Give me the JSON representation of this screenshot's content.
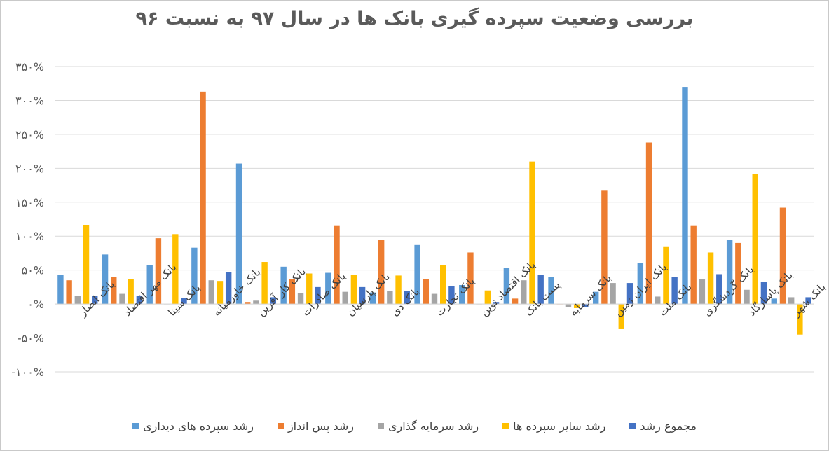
{
  "chart_data": {
    "type": "bar",
    "title": "بررسی وضعیت سپرده گیری بانک ها در سال ۹۷ به نسبت ۹۶",
    "categories": [
      "بانک انصار",
      "بانک مهر اقتصاد",
      "بانک سینا",
      "بانک خاورمیانه",
      "بانک کار آفرین",
      "بانک صادرات",
      "بانک پارسیان",
      "بانک دی",
      "بانک تجارت",
      "بانک اقتصاد نوین",
      "پست بانک",
      "بانک سرمایه",
      "بانک ایران زمین",
      "بانک ملت",
      "بانک گردشگری",
      "بانک پاسارگاد",
      "بانک شهر"
    ],
    "series": [
      {
        "name": "رشد سپرده های دیداری",
        "color": "#5B9BD5",
        "values": [
          43,
          73,
          57,
          83,
          207,
          55,
          46,
          17,
          87,
          28,
          53,
          40,
          18,
          60,
          320,
          95,
          8
        ]
      },
      {
        "name": "رشد پس انداز",
        "color": "#ED7D31",
        "values": [
          35,
          40,
          97,
          313,
          3,
          37,
          115,
          95,
          37,
          76,
          8,
          0,
          167,
          238,
          115,
          90,
          142
        ]
      },
      {
        "name": "رشد سرمایه گذاری",
        "color": "#A5A5A5",
        "values": [
          12,
          15,
          0,
          35,
          5,
          16,
          18,
          19,
          15,
          0,
          35,
          -5,
          31,
          11,
          37,
          21,
          10
        ]
      },
      {
        "name": "رشد سایر سپرده ها",
        "color": "#FFC000",
        "values": [
          116,
          37,
          103,
          34,
          62,
          45,
          43,
          42,
          57,
          20,
          210,
          -6,
          -37,
          85,
          76,
          192,
          -45
        ]
      },
      {
        "name": "مجموع رشد",
        "color": "#4472C4",
        "values": [
          12,
          12,
          9,
          47,
          10,
          25,
          25,
          19,
          26,
          3,
          43,
          -5,
          31,
          40,
          44,
          33,
          10
        ]
      }
    ],
    "yticks": [
      "۳۵۰%",
      "۳۰۰%",
      "۲۵۰%",
      "۲۰۰%",
      "۱۵۰%",
      "۱۰۰%",
      "۵۰%",
      "۰%",
      "-۵۰%",
      "-۱۰۰%"
    ],
    "ytick_values": [
      350,
      300,
      250,
      200,
      150,
      100,
      50,
      0,
      -50,
      -100
    ],
    "ylim": [
      -100,
      350
    ],
    "grid": true,
    "legend_position": "bottom"
  }
}
